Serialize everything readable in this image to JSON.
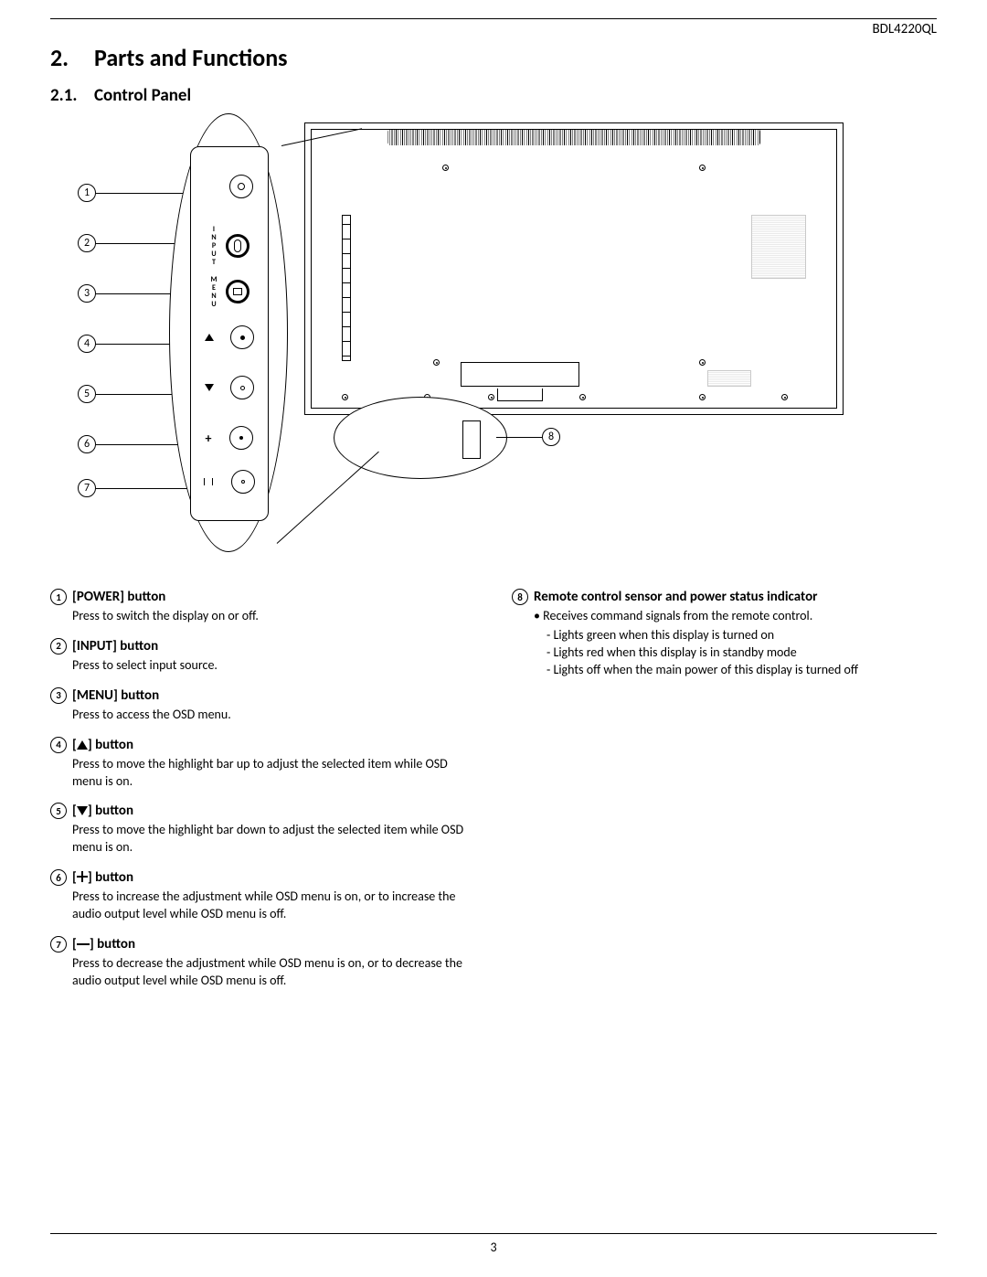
{
  "model": "BDL4220QL",
  "section_number": "2.",
  "section_title": "Parts and Functions",
  "subsection_number": "2.1.",
  "subsection_title": "Control Panel",
  "page_number": "3",
  "callouts": {
    "c1": "1",
    "c2": "2",
    "c3": "3",
    "c4": "4",
    "c5": "5",
    "c6": "6",
    "c7": "7",
    "c8": "8"
  },
  "panel_labels": {
    "input": "INPUT",
    "menu": "MENU"
  },
  "items_left": [
    {
      "num": "1",
      "title": "[POWER] button",
      "body": "Press to switch the display on or off."
    },
    {
      "num": "2",
      "title": "[INPUT] button",
      "body": "Press to select input source."
    },
    {
      "num": "3",
      "title": "[MENU] button",
      "body": "Press to access the OSD menu."
    },
    {
      "num": "4",
      "title_prefix": "[",
      "title_suffix": "] button",
      "icon": "up",
      "body": "Press to move the highlight bar up to adjust the selected item while OSD menu is on."
    },
    {
      "num": "5",
      "title_prefix": "[",
      "title_suffix": "] button",
      "icon": "down",
      "body": "Press to move the highlight bar down to adjust the selected item while OSD menu is on."
    },
    {
      "num": "6",
      "title_prefix": "[",
      "title_suffix": "] button",
      "icon": "plus",
      "body": "Press to increase the adjustment while OSD menu is on, or to increase the audio output level while OSD menu is off."
    },
    {
      "num": "7",
      "title_prefix": "[",
      "title_suffix": "] button",
      "icon": "minus",
      "body": "Press to decrease the adjustment while OSD menu is on, or to decrease the audio output level while OSD menu is off."
    }
  ],
  "item_right": {
    "num": "8",
    "title": "Remote control sensor and power status indicator",
    "bullet": "Receives command signals from the remote control.",
    "dashes": [
      "Lights green when this display is turned on",
      "Lights red when this display is in standby mode",
      "Lights off when the main power of this display is turned off"
    ]
  }
}
